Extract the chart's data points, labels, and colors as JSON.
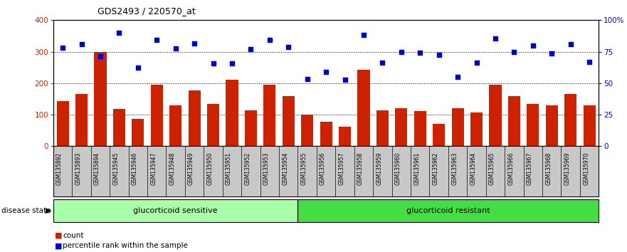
{
  "title": "GDS2493 / 220570_at",
  "categories": [
    "GSM135892",
    "GSM135893",
    "GSM135894",
    "GSM135945",
    "GSM135946",
    "GSM135947",
    "GSM135948",
    "GSM135949",
    "GSM135950",
    "GSM135951",
    "GSM135952",
    "GSM135953",
    "GSM135954",
    "GSM135955",
    "GSM135956",
    "GSM135957",
    "GSM135958",
    "GSM135959",
    "GSM135960",
    "GSM135961",
    "GSM135962",
    "GSM135963",
    "GSM135964",
    "GSM135965",
    "GSM135966",
    "GSM135967",
    "GSM135968",
    "GSM135969",
    "GSM135970"
  ],
  "bar_values": [
    143,
    165,
    300,
    118,
    86,
    195,
    130,
    178,
    135,
    210,
    113,
    195,
    160,
    100,
    78,
    62,
    242,
    113,
    120,
    112,
    70,
    120,
    108,
    195,
    160,
    135,
    130,
    165,
    130
  ],
  "scatter_values": [
    312,
    325,
    285,
    360,
    250,
    338,
    310,
    327,
    262,
    262,
    307,
    338,
    315,
    213,
    235,
    210,
    353,
    265,
    300,
    296,
    290,
    220,
    265,
    342,
    300,
    320,
    295,
    325,
    268
  ],
  "sensitive_count": 13,
  "resistant_count": 16,
  "left_ylim": [
    0,
    400
  ],
  "right_ylim": [
    0,
    100
  ],
  "left_yticks": [
    0,
    100,
    200,
    300,
    400
  ],
  "right_yticks": [
    0,
    25,
    50,
    75,
    100
  ],
  "right_yticklabels": [
    "0",
    "25",
    "50",
    "75",
    "100%"
  ],
  "bar_color": "#CC2200",
  "scatter_color": "#0000CC",
  "tick_area_color": "#C8C8C8",
  "sensitive_color": "#AAFFAA",
  "resistant_color": "#44DD44",
  "disease_state_label": "disease state",
  "sensitive_label": "glucorticoid sensitive",
  "resistant_label": "glucorticoid resistant",
  "legend_count": "count",
  "legend_percentile": "percentile rank within the sample"
}
